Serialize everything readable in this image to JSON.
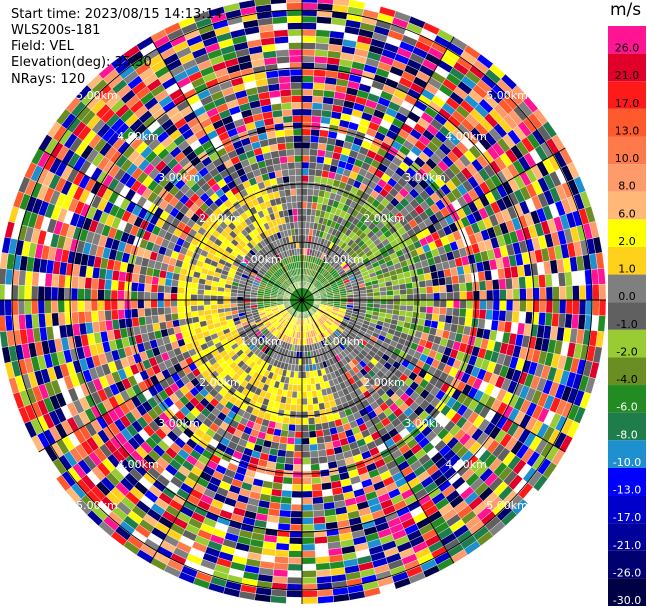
{
  "header": {
    "start_time": "Start time: 2023/08/15 14:13:14",
    "instrument": "WLS200s-181",
    "field": "Field: VEL",
    "elevation": "Elevation(deg): 35.30",
    "nrays": "NRays: 120"
  },
  "range_rings": {
    "labels": [
      "1.00km",
      "2.00km",
      "3.00km",
      "4.00km",
      "5.00km"
    ]
  },
  "colorbar": {
    "unit": "m/s",
    "bins": [
      {
        "label": "26.0",
        "color": "#ff1493"
      },
      {
        "label": "21.0",
        "color": "#e0002a"
      },
      {
        "label": "17.0",
        "color": "#ff1a1a"
      },
      {
        "label": "13.0",
        "color": "#ff5a2e"
      },
      {
        "label": "10.0",
        "color": "#ff7a4a"
      },
      {
        "label": "8.0",
        "color": "#ff9a6a"
      },
      {
        "label": "6.0",
        "color": "#ffb877"
      },
      {
        "label": "2.0",
        "color": "#ffff00"
      },
      {
        "label": "1.0",
        "color": "#ffd11a"
      },
      {
        "label": "0.0",
        "color": "#7f7f7f"
      },
      {
        "label": "-1.0",
        "color": "#606060"
      },
      {
        "label": "-2.0",
        "color": "#99cc33"
      },
      {
        "label": "-4.0",
        "color": "#6b8e23"
      },
      {
        "label": "-6.0",
        "color": "#228b22"
      },
      {
        "label": "-8.0",
        "color": "#1e7d4a"
      },
      {
        "label": "-10.0",
        "color": "#1e90d0"
      },
      {
        "label": "-13.0",
        "color": "#0000ff"
      },
      {
        "label": "-17.0",
        "color": "#0000cc"
      },
      {
        "label": "-21.0",
        "color": "#00009a"
      },
      {
        "label": "-26.0",
        "color": "#000070"
      },
      {
        "label": "-30.0",
        "color": "#000044"
      }
    ]
  }
}
